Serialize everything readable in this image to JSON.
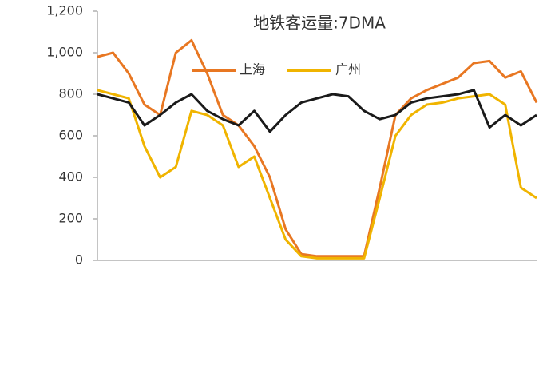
{
  "chart_data": {
    "type": "line",
    "title": "地铁客运量:7DMA",
    "ylim": [
      0,
      1200
    ],
    "yticks": [
      0,
      200,
      400,
      600,
      800,
      {
        "value": 1000,
        "label": "1,000"
      },
      {
        "value": 1200,
        "label": "1,200"
      }
    ],
    "series": [
      {
        "name": "上海",
        "color": "#e87722",
        "values": [
          980,
          1000,
          900,
          750,
          700,
          1000,
          1060,
          900,
          700,
          650,
          550,
          400,
          150,
          30,
          20,
          20,
          20,
          20,
          350,
          700,
          780,
          820,
          850,
          880,
          950,
          960,
          880,
          910,
          760
        ]
      },
      {
        "name": "广州",
        "color": "#f0b400",
        "values": [
          820,
          800,
          780,
          550,
          400,
          450,
          720,
          700,
          650,
          450,
          500,
          300,
          100,
          20,
          10,
          10,
          10,
          10,
          300,
          600,
          700,
          750,
          760,
          780,
          790,
          800,
          750,
          350,
          300
        ]
      },
      {
        "color": "#1a1a1a",
        "values": [
          800,
          780,
          760,
          650,
          700,
          760,
          800,
          720,
          680,
          650,
          720,
          620,
          700,
          760,
          780,
          800,
          790,
          720,
          680,
          700,
          760,
          780,
          790,
          800,
          820,
          640,
          700,
          650,
          700
        ]
      }
    ]
  }
}
